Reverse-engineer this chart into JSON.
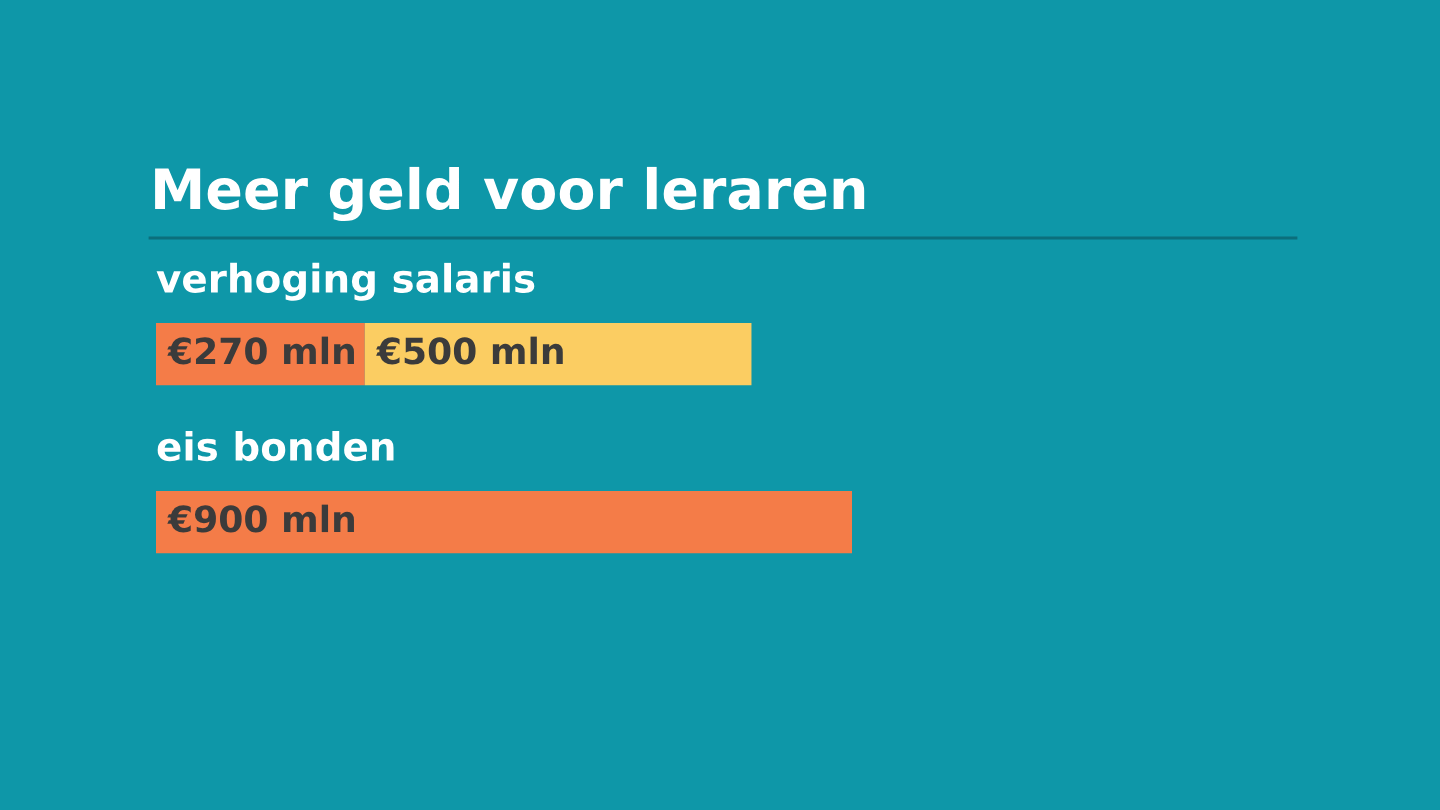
{
  "chart_data": {
    "type": "bar",
    "title": "Meer geld voor leraren",
    "orientation": "horizontal",
    "stacked": true,
    "categories": [
      "verhoging salaris",
      "eis bonden"
    ],
    "series": [
      {
        "color": "#f47c48",
        "values": [
          270,
          900
        ],
        "value_labels": [
          "€270 mln",
          "€900 mln"
        ]
      },
      {
        "color": "#fbcd62",
        "values": [
          500,
          null
        ],
        "value_labels": [
          "€500 mln",
          null
        ]
      }
    ]
  }
}
